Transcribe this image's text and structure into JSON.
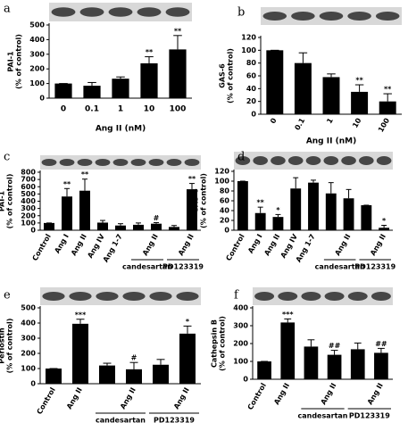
{
  "chart_data": [
    {
      "type": "bar",
      "panel_label": "a",
      "ylabel": "PAI-1",
      "ylabel_unit": "(% of control)",
      "xlabel": "Ang II (nM)",
      "categories": [
        "0",
        "0.1",
        "1",
        "10",
        "100"
      ],
      "values": [
        100,
        85,
        133,
        238,
        333
      ],
      "errors": [
        0,
        22,
        12,
        45,
        95
      ],
      "annotations": [
        null,
        null,
        null,
        "**",
        "**"
      ],
      "ylim": [
        0,
        500
      ],
      "yticks": [
        0,
        100,
        200,
        300,
        400,
        500
      ],
      "color": "#000000"
    },
    {
      "type": "bar",
      "panel_label": "b",
      "ylabel": "GAS-6",
      "ylabel_unit": "(% of control)",
      "xlabel": "Ang II (nM)",
      "categories": [
        "0",
        "0.1",
        "1",
        "10",
        "100"
      ],
      "values": [
        100,
        80,
        58,
        35,
        20
      ],
      "errors": [
        0,
        16,
        5,
        11,
        12
      ],
      "annotations": [
        null,
        null,
        null,
        "**",
        "**"
      ],
      "ylim": [
        0,
        120
      ],
      "yticks": [
        0,
        20,
        40,
        60,
        80,
        100,
        120
      ],
      "color": "#000000"
    },
    {
      "type": "bar",
      "panel_label": "c",
      "ylabel": "PAI-1",
      "ylabel_unit": "(% of control)",
      "categories": [
        "Control",
        "Ang I",
        "Ang II",
        "Ang IV",
        "Ang 1-7",
        null,
        "Ang II",
        null,
        "Ang II"
      ],
      "values": [
        100,
        465,
        545,
        105,
        65,
        75,
        90,
        45,
        565
      ],
      "errors": [
        0,
        110,
        160,
        30,
        25,
        25,
        15,
        20,
        80
      ],
      "annotations": [
        null,
        "**",
        "**",
        null,
        null,
        null,
        "#",
        null,
        "**"
      ],
      "groups": [
        {
          "label": "candesartan",
          "span": [
            5,
            6
          ]
        },
        {
          "label": "PD123319",
          "span": [
            7,
            8
          ]
        }
      ],
      "ylim": [
        0,
        800
      ],
      "yticks": [
        0,
        100,
        200,
        300,
        400,
        500,
        600,
        700,
        800
      ],
      "color": "#000000"
    },
    {
      "type": "bar",
      "panel_label": "d",
      "ylabel": "GAS-6",
      "ylabel_unit": "(% of control)",
      "categories": [
        "Control",
        "Ang I",
        "Ang II",
        "Ang IV",
        "Ang 1-7",
        null,
        "Ang II",
        null,
        "Ang II"
      ],
      "values": [
        100,
        35,
        27,
        85,
        97,
        75,
        65,
        51,
        5
      ],
      "errors": [
        0,
        12,
        5,
        22,
        5,
        22,
        18,
        0,
        5
      ],
      "annotations": [
        null,
        "**",
        "*",
        null,
        null,
        null,
        null,
        null,
        "*"
      ],
      "groups": [
        {
          "label": "candesartan",
          "span": [
            5,
            6
          ]
        },
        {
          "label": "PD123319",
          "span": [
            7,
            8
          ]
        }
      ],
      "ylim": [
        0,
        120
      ],
      "yticks": [
        0,
        20,
        40,
        60,
        80,
        100,
        120
      ],
      "color": "#000000"
    },
    {
      "type": "bar",
      "panel_label": "e",
      "ylabel": "Periostin",
      "ylabel_unit": "(% of control)",
      "categories": [
        "Control",
        "Ang II",
        null,
        "Ang II",
        null,
        "Ang II"
      ],
      "values": [
        100,
        395,
        120,
        95,
        125,
        330
      ],
      "errors": [
        0,
        30,
        15,
        45,
        35,
        50
      ],
      "annotations": [
        null,
        "***",
        null,
        "#",
        null,
        "*"
      ],
      "groups": [
        {
          "label": "candesartan",
          "span": [
            2,
            3
          ]
        },
        {
          "label": "PD123319",
          "span": [
            4,
            5
          ]
        }
      ],
      "ylim": [
        0,
        500
      ],
      "yticks": [
        0,
        100,
        200,
        300,
        400,
        500
      ],
      "color": "#000000"
    },
    {
      "type": "bar",
      "panel_label": "f",
      "ylabel": "Cathepsin B",
      "ylabel_unit": "(% of control)",
      "categories": [
        "Control",
        "Ang II",
        null,
        "Ang II",
        null,
        "Ang II"
      ],
      "values": [
        100,
        318,
        183,
        137,
        168,
        148
      ],
      "errors": [
        0,
        20,
        38,
        25,
        35,
        25
      ],
      "annotations": [
        null,
        "***",
        null,
        "##",
        null,
        "##"
      ],
      "groups": [
        {
          "label": "candesartan",
          "span": [
            2,
            3
          ]
        },
        {
          "label": "PD123319",
          "span": [
            4,
            5
          ]
        }
      ],
      "ylim": [
        0,
        400
      ],
      "yticks": [
        0,
        100,
        200,
        300,
        400
      ],
      "color": "#000000"
    }
  ]
}
